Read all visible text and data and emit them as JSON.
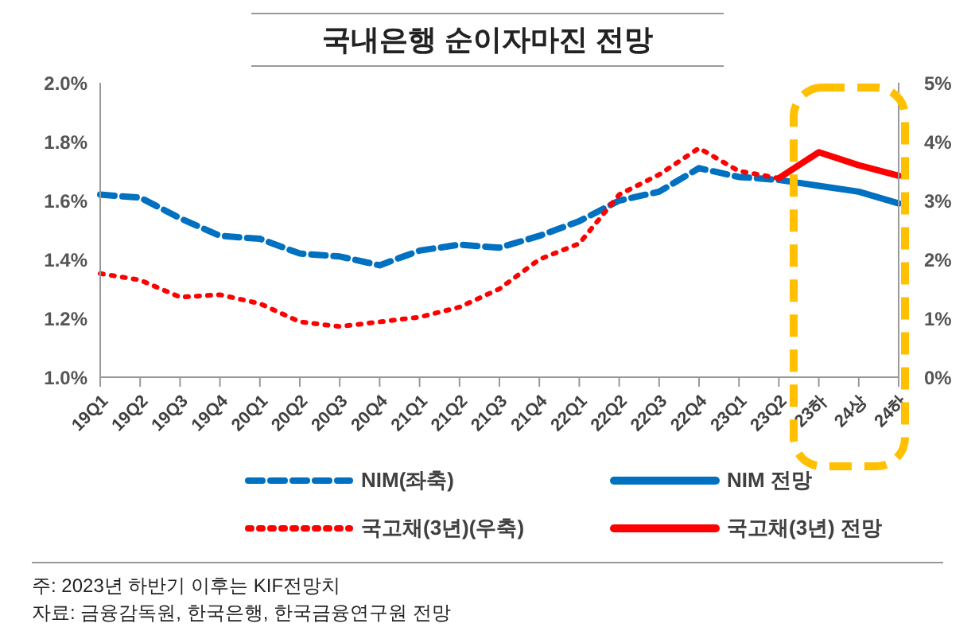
{
  "chart_data": {
    "type": "line",
    "title": "국내은행 순이자마진 전망",
    "categories": [
      "19Q1",
      "19Q2",
      "19Q3",
      "19Q4",
      "20Q1",
      "20Q2",
      "20Q3",
      "20Q4",
      "21Q1",
      "21Q2",
      "21Q3",
      "21Q4",
      "22Q1",
      "22Q2",
      "22Q3",
      "22Q4",
      "23Q1",
      "23Q2",
      "23하",
      "24상",
      "24하"
    ],
    "series": [
      {
        "name": "NIM(좌축)",
        "color": "#0070c0",
        "line_style": "dashed",
        "values": [
          1.62,
          1.61,
          1.54,
          1.48,
          1.47,
          1.42,
          1.41,
          1.38,
          1.43,
          1.45,
          1.44,
          1.48,
          1.53,
          1.6,
          1.63,
          1.71,
          1.68,
          1.67,
          null,
          null,
          null
        ]
      },
      {
        "name": "NIM 전망",
        "color": "#0070c0",
        "line_style": "solid",
        "values": [
          null,
          null,
          null,
          null,
          null,
          null,
          null,
          null,
          null,
          null,
          null,
          null,
          null,
          null,
          null,
          null,
          null,
          1.67,
          1.65,
          1.63,
          1.59
        ]
      },
      {
        "name": "국고채(3년)(우축)",
        "color": "#ff0000",
        "line_style": "dotted",
        "axis": "y2",
        "values": [
          1.76,
          1.65,
          1.36,
          1.4,
          1.25,
          0.94,
          0.86,
          0.94,
          1.02,
          1.19,
          1.5,
          2.0,
          2.27,
          3.1,
          3.44,
          3.89,
          3.5,
          3.38,
          null,
          null,
          null
        ]
      },
      {
        "name": "국고채(3년) 전망",
        "color": "#ff0000",
        "line_style": "solid",
        "axis": "y2",
        "values": [
          null,
          null,
          null,
          null,
          null,
          null,
          null,
          null,
          null,
          null,
          null,
          null,
          null,
          null,
          null,
          null,
          null,
          3.38,
          3.82,
          3.6,
          3.42
        ]
      }
    ],
    "ylim": [
      1.0,
      2.0
    ],
    "yticks": [
      {
        "value": 1.0,
        "label": "1.0%"
      },
      {
        "value": 1.2,
        "label": "1.2%"
      },
      {
        "value": 1.4,
        "label": "1.4%"
      },
      {
        "value": 1.6,
        "label": "1.6%"
      },
      {
        "value": 1.8,
        "label": "1.8%"
      },
      {
        "value": 2.0,
        "label": "2.0%"
      }
    ],
    "y2lim": [
      0,
      5
    ],
    "y2ticks": [
      {
        "value": 0,
        "label": "0%"
      },
      {
        "value": 1,
        "label": "1%"
      },
      {
        "value": 2,
        "label": "2%"
      },
      {
        "value": 3,
        "label": "3%"
      },
      {
        "value": 4,
        "label": "4%"
      },
      {
        "value": 5,
        "label": "5%"
      }
    ],
    "grid": false,
    "legend": "bottom",
    "marker": "none",
    "annotations": [
      "주: 2023년 하반기 이후는 KIF전망치",
      "자료: 금융감독원, 한국은행, 한국금융연구원 전망"
    ]
  }
}
